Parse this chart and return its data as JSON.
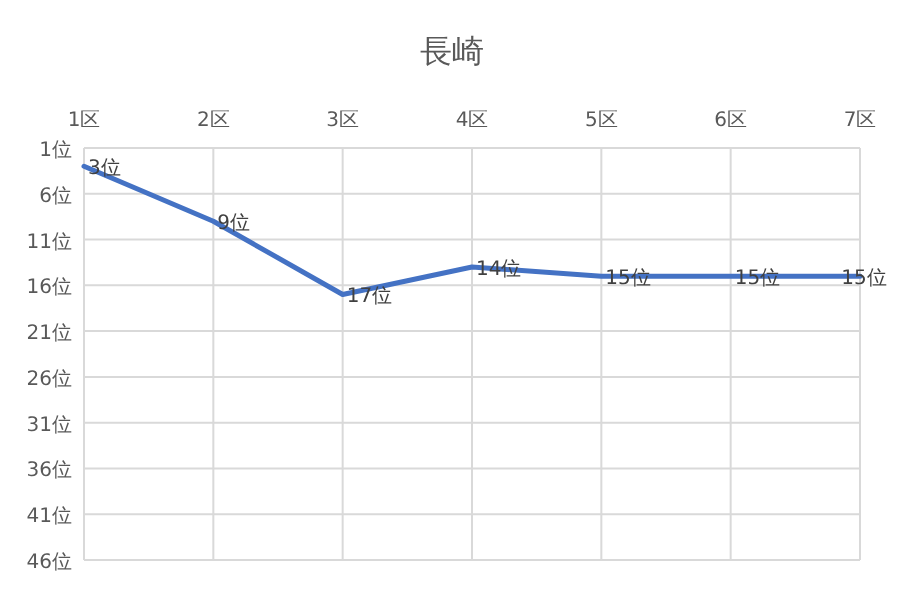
{
  "chart_data": {
    "type": "line",
    "title": "長崎",
    "categories": [
      "1区",
      "2区",
      "3区",
      "4区",
      "5区",
      "6区",
      "7区"
    ],
    "values": [
      3,
      9,
      17,
      14,
      15,
      15,
      15
    ],
    "value_labels": [
      "3位",
      "9位",
      "17位",
      "14位",
      "15位",
      "15位",
      "15位"
    ],
    "color": "#4472c4",
    "ylim": [
      46,
      1
    ],
    "yticks": [
      {
        "value": 1,
        "label": "1位"
      },
      {
        "value": 6,
        "label": "6位"
      },
      {
        "value": 11,
        "label": "11位"
      },
      {
        "value": 16,
        "label": "16位"
      },
      {
        "value": 21,
        "label": "21位"
      },
      {
        "value": 26,
        "label": "26位"
      },
      {
        "value": 31,
        "label": "31位"
      },
      {
        "value": 36,
        "label": "36位"
      },
      {
        "value": 41,
        "label": "41位"
      },
      {
        "value": 46,
        "label": "46位"
      }
    ],
    "grid": true
  }
}
